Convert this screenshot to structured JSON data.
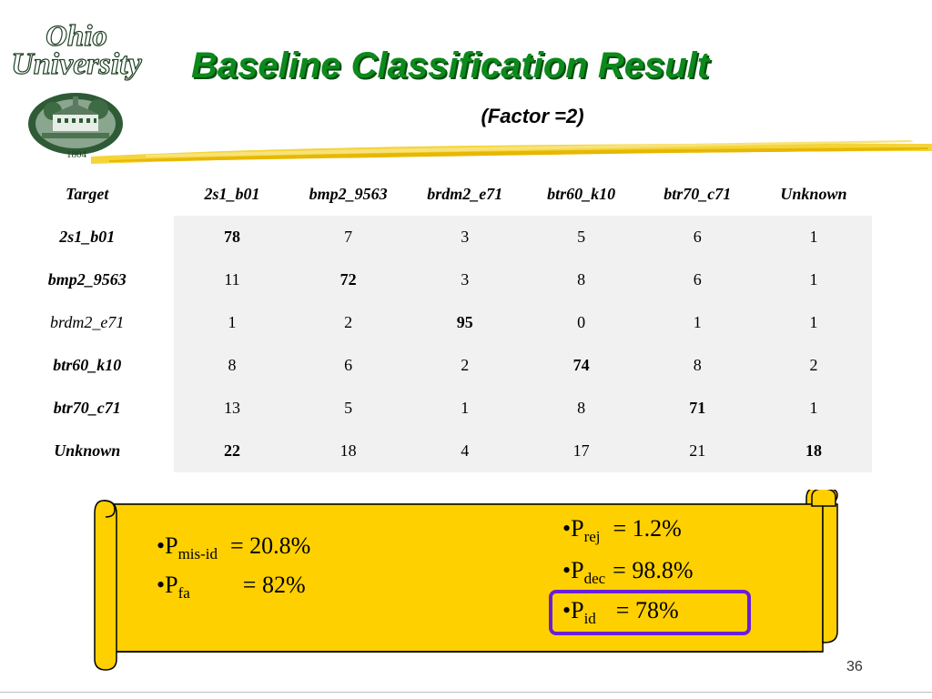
{
  "logo": {
    "word1": "Ohio",
    "word2": "University",
    "year": "1804"
  },
  "title": "Baseline Classification Result",
  "subtitle": "(Factor =2)",
  "table": {
    "corner": "Target",
    "columns": [
      "2s1_b01",
      "bmp2_9563",
      "brdm2_e71",
      "btr60_k10",
      "btr70_c71",
      "Unknown"
    ],
    "rows": [
      {
        "label": "2s1_b01",
        "values": [
          "78",
          "7",
          "3",
          "5",
          "6",
          "1"
        ]
      },
      {
        "label": "bmp2_9563",
        "values": [
          "11",
          "72",
          "3",
          "8",
          "6",
          "1"
        ]
      },
      {
        "label": "brdm2_e71",
        "values": [
          "1",
          "2",
          "95",
          "0",
          "1",
          "1"
        ]
      },
      {
        "label": "btr60_k10",
        "values": [
          "8",
          "6",
          "2",
          "74",
          "8",
          "2"
        ]
      },
      {
        "label": "btr70_c71",
        "values": [
          "13",
          "5",
          "1",
          "8",
          "71",
          "1"
        ]
      },
      {
        "label": "Unknown",
        "values": [
          "22",
          "18",
          "4",
          "17",
          "21",
          "18"
        ]
      }
    ]
  },
  "stats": {
    "misid": {
      "bullet": "•P",
      "sub": "mis-id",
      "value": "= 20.8%"
    },
    "fa": {
      "bullet": "•P",
      "sub": "fa",
      "value": "= 82%"
    },
    "rej": {
      "bullet": "•P",
      "sub": "rej",
      "value": "= 1.2%"
    },
    "dec": {
      "bullet": "•P",
      "sub": "dec",
      "value": "= 98.8%"
    },
    "id": {
      "bullet": "•P",
      "sub": "id",
      "value": "= 78%"
    }
  },
  "colors": {
    "title": "#0c8a1c",
    "scroll": "#ffd000",
    "highlight": "#6a1fd6"
  },
  "page_number": "36"
}
